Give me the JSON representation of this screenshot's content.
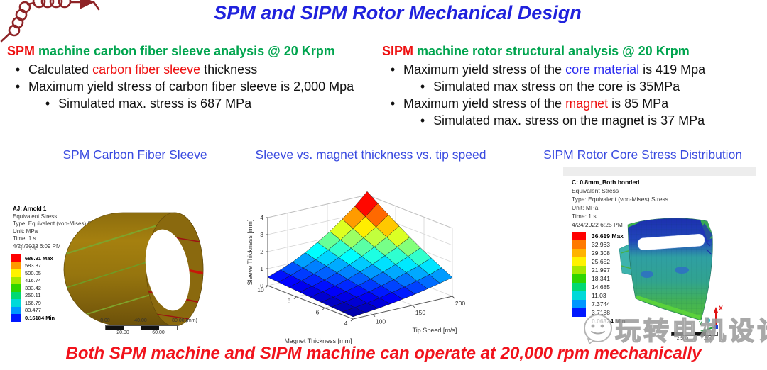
{
  "title": "SPM and SIPM Rotor Mechanical Design",
  "glyphs": {
    "bullet": "•"
  },
  "colors": {
    "title_blue": "#2022dd",
    "caption_blue": "#3a4be0",
    "heading_green": "#00a44e",
    "highlight_red": "#ee1111",
    "core_blue": "#2a2af0",
    "bottom_red": "#f1131c",
    "logo_dark_red": "#8e2326"
  },
  "left_block": {
    "heading": {
      "highlight": "SPM",
      "rest": " machine carbon fiber sleeve analysis @ 20 Krpm"
    },
    "b1": {
      "pre": "Calculated ",
      "highlight": "carbon fiber sleeve",
      "post": " thickness"
    },
    "b2": "Maximum yield stress of carbon fiber sleeve is 2,000 Mpa",
    "b2_sub": "Simulated max. stress is 687 MPa"
  },
  "right_block": {
    "heading": {
      "highlight": "SIPM",
      "rest": " machine rotor structural analysis @ 20 Krpm"
    },
    "b1": {
      "pre": "Maximum yield stress of the ",
      "highlight": "core material",
      "post": " is 419 Mpa"
    },
    "b1_sub": "Simulated max stress on the core is 35MPa",
    "b2": {
      "pre": "Maximum yield stress of the ",
      "highlight": "magnet",
      "post": " is 85 MPa"
    },
    "b2_sub": "Simulated max. stress on the magnet is 37 MPa"
  },
  "captions": {
    "left": "SPM Carbon Fiber Sleeve",
    "middle": "Sleeve vs. magnet thickness vs. tip speed",
    "right": "SIPM Rotor Core Stress Distribution"
  },
  "left_figure": {
    "info": [
      "AJ: Arnold 1",
      "Equivalent Stress",
      "Type: Equivalent (von-Mises) Stress",
      "Unit: MPa",
      "Time: 1 s",
      "4/24/2022 6:09 PM"
    ],
    "scale_note": "750",
    "legend_values": [
      "686.91 Max",
      "583.37",
      "500.05",
      "416.74",
      "333.42",
      "250.11",
      "166.79",
      "83.477",
      "0.16184 Min"
    ],
    "legend_colors": [
      "#ff0000",
      "#ff9900",
      "#fff200",
      "#a6e800",
      "#2fd500",
      "#00d973",
      "#00d9d9",
      "#0097ff",
      "#0018ff"
    ],
    "ruler": {
      "top": [
        "0.00",
        "40.00",
        "80.00 (mm)"
      ],
      "bottom": [
        "20.00",
        "60.00"
      ]
    }
  },
  "right_figure": {
    "info": [
      "C: 0.8mm_Both bonded",
      "Equivalent Stress",
      "Type: Equivalent (von-Mises) Stress",
      "Unit: MPa",
      "Time: 1 s",
      "4/24/2022 6:25 PM"
    ],
    "legend_values": [
      "36.619 Max",
      "32.963",
      "29.308",
      "25.652",
      "21.997",
      "18.341",
      "14.685",
      "11.03",
      "7.3744",
      "3.7188",
      "0.06324 Min"
    ],
    "legend_colors": [
      "#ff0000",
      "#ff7a00",
      "#ffb300",
      "#fff200",
      "#a6e800",
      "#2fd500",
      "#00d973",
      "#00d9d9",
      "#0097ff",
      "#0018ff"
    ],
    "ruler": {
      "labels": [
        "2.500",
        "7.500"
      ]
    },
    "triad": {
      "x_label": "X",
      "y_label": "Y"
    }
  },
  "chart_data": {
    "type": "surface",
    "title": "",
    "xlabel": "Tip Speed [m/s]",
    "ylabel": "Magnet Thickness [mm]",
    "zlabel": "Sleeve Thickness [mm]",
    "x_tip_speed": [
      75,
      91,
      106,
      122,
      138,
      153,
      169,
      184,
      200
    ],
    "y_magnet_thickness": [
      4,
      4.75,
      5.5,
      6.25,
      7,
      7.75,
      8.5,
      9.25,
      10
    ],
    "z_sleeve_thickness": [
      [
        0.13,
        0.2,
        0.28,
        0.38,
        0.5,
        0.62,
        0.77,
        0.93,
        1.11
      ],
      [
        0.17,
        0.26,
        0.36,
        0.49,
        0.64,
        0.8,
        0.99,
        1.19,
        1.43
      ],
      [
        0.21,
        0.32,
        0.45,
        0.6,
        0.79,
        0.99,
        1.23,
        1.47,
        1.77
      ],
      [
        0.25,
        0.38,
        0.54,
        0.73,
        0.95,
        1.19,
        1.47,
        1.77,
        2.12
      ],
      [
        0.3,
        0.45,
        0.63,
        0.86,
        1.12,
        1.4,
        1.74,
        2.09,
        2.5
      ],
      [
        0.35,
        0.53,
        0.73,
        0.99,
        1.3,
        1.62,
        2.01,
        2.42,
        2.9
      ],
      [
        0.39,
        0.6,
        0.84,
        1.14,
        1.48,
        1.86,
        2.3,
        2.77,
        3.32
      ],
      [
        0.45,
        0.68,
        0.95,
        1.28,
        1.68,
        2.1,
        2.6,
        3.13,
        3.75
      ],
      [
        0.5,
        0.76,
        1.06,
        1.44,
        1.88,
        2.35,
        2.91,
        3.5,
        4.2
      ]
    ],
    "x_ticks": [
      100,
      150,
      200
    ],
    "y_ticks": [
      10,
      8,
      6,
      4
    ],
    "z_ticks": [
      0,
      1,
      2,
      3,
      4
    ],
    "zlim": [
      0,
      4.2
    ],
    "colormap": "jet",
    "grid": true,
    "legend_position": "none"
  },
  "bottom_note": "Both SPM machine and SIPM machine can operate at 20,000 rpm mechanically",
  "watermark": "玩转电机设计"
}
